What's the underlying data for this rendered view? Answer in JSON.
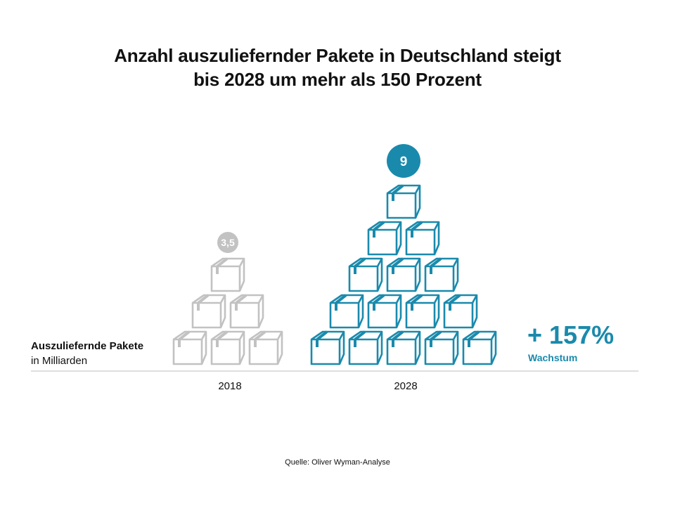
{
  "header": {
    "title_line1": "Anzahl auszuliefernder Pakete in Deutschland steigt",
    "title_line2": "bis 2028 um mehr als 150 Prozent"
  },
  "chart_data": {
    "type": "bar",
    "categories": [
      "2018",
      "2028"
    ],
    "values": [
      3.5,
      9
    ],
    "value_labels": [
      "3,5",
      "9"
    ],
    "ylabel": "Auszuliefernde Pakete",
    "yunit": "in Milliarden",
    "box_rows": [
      [
        3,
        2,
        1
      ],
      [
        5,
        4,
        3,
        2,
        1
      ]
    ],
    "colors": [
      "#c2c2c2",
      "#1a8aac"
    ],
    "grid": false,
    "legend": "none"
  },
  "annotation": {
    "growth_value": "+ 157%",
    "growth_label": "Wachstum"
  },
  "footer": {
    "source": "Quelle: Oliver Wyman-Analyse"
  }
}
